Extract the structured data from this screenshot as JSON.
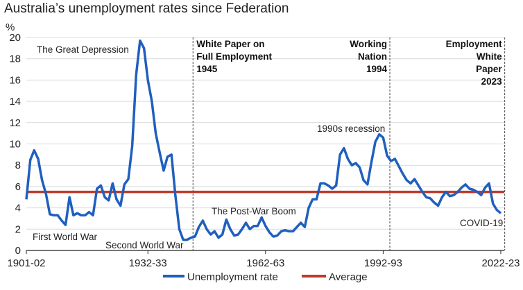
{
  "chart_data": {
    "type": "line",
    "title": "Australia’s unemployment rates since Federation",
    "ylabel": "%",
    "xlabel": "",
    "ylim": [
      0,
      20
    ],
    "yticks": [
      0,
      2,
      4,
      6,
      8,
      10,
      12,
      14,
      16,
      18,
      20
    ],
    "xlim": [
      1901,
      2022
    ],
    "xticks": [
      {
        "year": 1901,
        "label": "1901-02"
      },
      {
        "year": 1932,
        "label": "1932-33"
      },
      {
        "year": 1962,
        "label": "1962-63"
      },
      {
        "year": 1992,
        "label": "1992-93"
      },
      {
        "year": 2022,
        "label": "2022-23"
      }
    ],
    "grid": true,
    "legend_position": "bottom",
    "start_year": 1901,
    "series": [
      {
        "name": "Unemployment rate",
        "color": "#1f5fbf",
        "values": [
          4.8,
          8.5,
          9.4,
          8.6,
          6.6,
          5.3,
          3.4,
          3.3,
          3.3,
          2.8,
          2.4,
          5.0,
          3.3,
          3.5,
          3.3,
          3.3,
          3.6,
          3.3,
          5.8,
          6.1,
          5.0,
          4.7,
          6.3,
          4.8,
          4.2,
          6.2,
          6.7,
          9.8,
          16.5,
          19.7,
          19.0,
          16.0,
          14.0,
          11.0,
          9.2,
          7.5,
          8.8,
          9.0,
          5.2,
          2.0,
          1.0,
          1.0,
          1.2,
          1.3,
          2.2,
          2.8,
          2.0,
          1.5,
          1.8,
          1.2,
          1.5,
          2.9,
          2.0,
          1.4,
          1.5,
          2.0,
          2.6,
          2.0,
          2.3,
          2.3,
          3.1,
          2.3,
          1.7,
          1.3,
          1.4,
          1.8,
          1.9,
          1.8,
          1.8,
          2.2,
          2.6,
          2.2,
          4.0,
          4.8,
          4.8,
          6.3,
          6.3,
          6.1,
          5.8,
          6.1,
          9.0,
          9.6,
          8.6,
          8.0,
          8.2,
          7.8,
          6.6,
          6.2,
          8.3,
          10.2,
          10.9,
          10.6,
          8.9,
          8.4,
          8.6,
          7.9,
          7.2,
          6.6,
          6.3,
          6.7,
          6.1,
          5.5,
          5.0,
          4.9,
          4.5,
          4.2,
          5.0,
          5.5,
          5.1,
          5.2,
          5.5,
          5.9,
          6.2,
          5.8,
          5.7,
          5.5,
          5.2,
          5.9,
          6.3,
          4.4,
          3.8,
          3.5
        ]
      },
      {
        "name": "Average",
        "color": "#c0392b",
        "constant": 5.5
      }
    ],
    "policy_markers": [
      {
        "year": 1943.5,
        "lines": [
          "White Paper on",
          "Full Employment",
          "1945"
        ]
      },
      {
        "year": 1993.7,
        "lines": [
          "Working",
          "Nation",
          "1994"
        ]
      },
      {
        "year": 2023,
        "lines": [
          "Employment",
          "White",
          "Paper",
          "2023"
        ]
      }
    ],
    "annotations": {
      "great_depression": "The Great Depression",
      "first_world_war": "First World War",
      "second_world_war": "Second World War",
      "post_war_boom": "The Post-War Boom",
      "recession_1990s": "1990s recession",
      "covid": "COVID-19"
    }
  }
}
